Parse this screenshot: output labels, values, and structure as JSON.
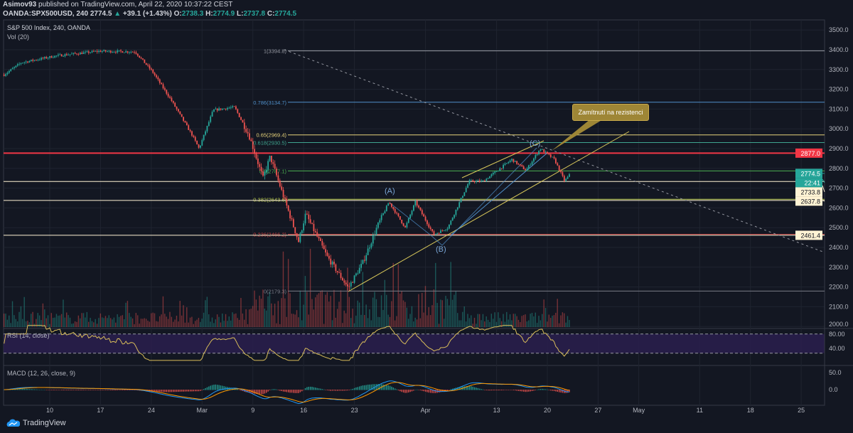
{
  "header": {
    "author": "Asimov93",
    "published": " published on TradingView.com, April 22, 2020 10:37:22 CEST",
    "symbol": "OANDA:SPX500USD, 240",
    "last": "2774.5",
    "change": "+39.1 (+1.43%)",
    "o_label": "O:",
    "o": "2738.3",
    "h_label": "H:",
    "h": "2774.9",
    "l_label": "L:",
    "l": "2737.8",
    "c_label": "C:",
    "c": "2774.5"
  },
  "legend": {
    "title": "S&P 500 Index, 240, OANDA",
    "vol": "Vol (20)",
    "rsi": "RSI (14, close)",
    "macd": "MACD (12, 26, close, 9)"
  },
  "annotation": {
    "callout": "Zamítnutí na rezistenci",
    "wave_a": "(A)",
    "wave_b": "(B)",
    "wave_c": "(C)"
  },
  "footer": {
    "brand": "TradingView"
  },
  "colors": {
    "up": "#26a69a",
    "down": "#ef5350",
    "red_level": "#f23645",
    "fib_blue": "#4f8fc9",
    "fib_yellow": "#e6d27a",
    "fib_teal": "#3fa58f",
    "rsi": "#d9bd5a",
    "callout": "#9e8636"
  },
  "chart_data": {
    "type": "candlestick",
    "title": "S&P 500 Index, 240, OANDA",
    "y_ticks": [
      3500,
      3400,
      3300,
      3200,
      3100,
      3000,
      2900,
      2800,
      2700,
      2600,
      2500,
      2400,
      2300,
      2200,
      2100,
      2000
    ],
    "x_ticks": [
      {
        "label": "10",
        "day": 0
      },
      {
        "label": "17",
        "day": 5
      },
      {
        "label": "24",
        "day": 10
      },
      {
        "label": "Mar",
        "day": 15
      },
      {
        "label": "9",
        "day": 20
      },
      {
        "label": "16",
        "day": 25
      },
      {
        "label": "23",
        "day": 30
      },
      {
        "label": "Apr",
        "day": 37
      },
      {
        "label": "13",
        "day": 44
      },
      {
        "label": "20",
        "day": 49
      },
      {
        "label": "27",
        "day": 54
      },
      {
        "label": "May",
        "day": 58
      },
      {
        "label": "11",
        "day": 64
      },
      {
        "label": "18",
        "day": 69
      },
      {
        "label": "25",
        "day": 74
      }
    ],
    "price_path": [
      [
        -4.5,
        3274
      ],
      [
        -2.8,
        3335
      ],
      [
        0.7,
        3370
      ],
      [
        4.9,
        3393
      ],
      [
        8.4,
        3390
      ],
      [
        10.1,
        3290
      ],
      [
        11.9,
        3150
      ],
      [
        14,
        2970
      ],
      [
        14.7,
        2900
      ],
      [
        16.1,
        3095
      ],
      [
        18.2,
        3110
      ],
      [
        19.6,
        2970
      ],
      [
        21,
        2750
      ],
      [
        21.7,
        2860
      ],
      [
        23.1,
        2645
      ],
      [
        24.5,
        2430
      ],
      [
        25.2,
        2570
      ],
      [
        27.3,
        2355
      ],
      [
        29.4,
        2195
      ],
      [
        30.8,
        2320
      ],
      [
        32.2,
        2500
      ],
      [
        33.4,
        2630
      ],
      [
        35,
        2500
      ],
      [
        36,
        2630
      ],
      [
        37.8,
        2465
      ],
      [
        39.2,
        2500
      ],
      [
        41.3,
        2735
      ],
      [
        42.7,
        2735
      ],
      [
        44.1,
        2790
      ],
      [
        45.5,
        2845
      ],
      [
        46.9,
        2790
      ],
      [
        48.3,
        2900
      ],
      [
        49.7,
        2845
      ],
      [
        50.7,
        2735
      ],
      [
        51.3,
        2774.5
      ]
    ],
    "fib_levels": [
      {
        "label": "1(3394.8)",
        "price": 3394.8,
        "color": "#9598a1"
      },
      {
        "label": "0.786(3134.7)",
        "price": 3134.7,
        "color": "#4f8fc9"
      },
      {
        "label": "0.65(2969.4)",
        "price": 2969.4,
        "color": "#e6d27a"
      },
      {
        "label": "0.618(2930.5)",
        "price": 2930.5,
        "color": "#3fa58f"
      },
      {
        "label": "0.5(2787.1)",
        "price": 2787.1,
        "color": "#4caf50"
      },
      {
        "label": "0.382(2643.6)",
        "price": 2643.6,
        "color": "#b5c84a"
      },
      {
        "label": "0.236(2466.2)",
        "price": 2466.2,
        "color": "#d04545"
      },
      {
        "label": "0(2179.3)",
        "price": 2179.3,
        "color": "#787b86"
      }
    ],
    "price_labels": [
      {
        "text": "2877.0",
        "price": 2877.0,
        "bg": "#f23645",
        "fg": "#ffffff"
      },
      {
        "text": "2774.5",
        "price": 2774.5,
        "bg": "#26a69a",
        "fg": "#ffffff"
      },
      {
        "text": "22:41",
        "price": 2745,
        "bg": "#26a69a",
        "fg": "#ffffff"
      },
      {
        "text": "2733.8",
        "price": 2713,
        "bg": "#fff3d4",
        "fg": "#131722"
      },
      {
        "text": "2637.8",
        "price": 2637.8,
        "bg": "#fff3d4",
        "fg": "#131722"
      },
      {
        "text": "2461.4",
        "price": 2461.4,
        "bg": "#fff3d4",
        "fg": "#131722"
      }
    ],
    "horizontal_levels": [
      2877.0,
      2733.8,
      2637.8,
      2461.4
    ],
    "rsi_ticks": [
      "80.00",
      "40.00"
    ],
    "rsi_bands": [
      70,
      30
    ],
    "macd_ticks": [
      "50.0",
      "0.0"
    ]
  }
}
